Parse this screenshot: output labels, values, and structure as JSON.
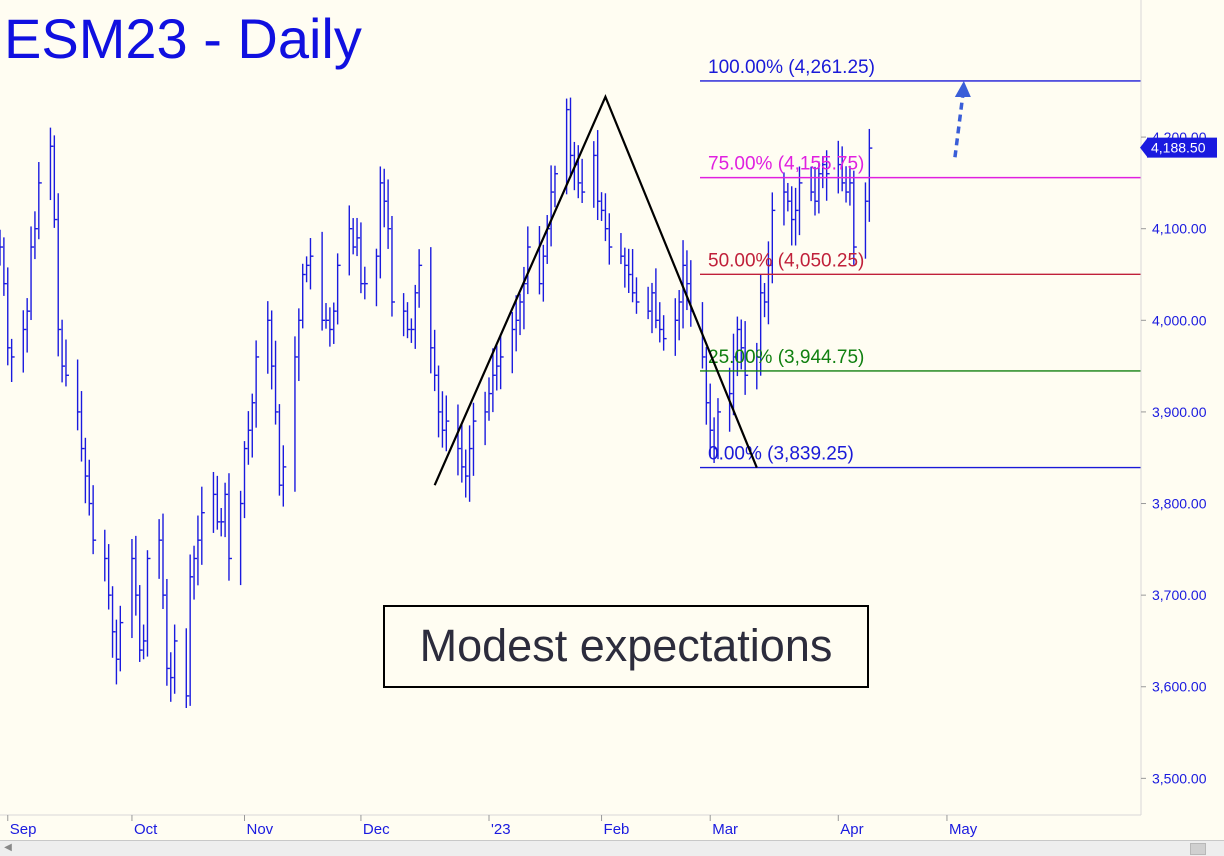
{
  "chart_data": {
    "type": "ohlc-bar",
    "title": "ESM23 - Daily",
    "ylim": [
      3460,
      4330
    ],
    "y_ticks": [
      "3,500.00",
      "3,600.00",
      "3,700.00",
      "3,800.00",
      "3,900.00",
      "4,000.00",
      "4,100.00",
      "4,200.00"
    ],
    "y_tick_values": [
      3500,
      3600,
      3700,
      3800,
      3900,
      4000,
      4100,
      4200
    ],
    "x_ticks": [
      "Sep",
      "Oct",
      "Nov",
      "Dec",
      "'23",
      "Feb",
      "Mar",
      "Apr",
      "May"
    ],
    "x_tick_dates": [
      "2022-09-01",
      "2022-10-03",
      "2022-11-01",
      "2022-12-01",
      "2023-01-03",
      "2023-02-01",
      "2023-03-01",
      "2023-04-03",
      "2023-05-01"
    ],
    "x_range": [
      "2022-08-30",
      "2023-06-20"
    ],
    "last_price": "4,188.50",
    "last_price_value": 4188.5,
    "series_closes": {
      "dates_start": "2022-08-30",
      "closes": [
        4080,
        4040,
        3970,
        3960,
        3990,
        4010,
        4080,
        4100,
        4150,
        4190,
        4110,
        3990,
        3950,
        3940,
        3900,
        3860,
        3830,
        3800,
        3760,
        3740,
        3700,
        3660,
        3630,
        3670,
        3740,
        3700,
        3640,
        3650,
        3740,
        3760,
        3700,
        3620,
        3610,
        3650,
        3590,
        3720,
        3740,
        3760,
        3790,
        3810,
        3780,
        3780,
        3810,
        3740,
        3800,
        3860,
        3880,
        3910,
        3960,
        4000,
        3950,
        3900,
        3820,
        3840,
        3960,
        4000,
        4050,
        4060,
        4070,
        4000,
        4000,
        3990,
        4010,
        4060,
        4100,
        4080,
        4090,
        4040,
        4040,
        4070,
        4150,
        4130,
        4100,
        4020,
        4010,
        3990,
        3990,
        4030,
        4060,
        3970,
        3940,
        3900,
        3880,
        3890,
        3860,
        3840,
        3830,
        3860,
        3890,
        3900,
        3920,
        3940,
        3950,
        3960,
        3990,
        4000,
        4020,
        4040,
        4080,
        4040,
        4070,
        4100,
        4140,
        4160,
        4230,
        4180,
        4170,
        4150,
        4140,
        4180,
        4130,
        4120,
        4100,
        4080,
        4070,
        4060,
        4050,
        4030,
        4020,
        4010,
        4030,
        4000,
        3990,
        3980,
        4000,
        4020,
        4060,
        4040,
        4010,
        3960,
        3910,
        3880,
        3860,
        3900,
        3920,
        3960,
        3990,
        3970,
        3940,
        3960,
        4030,
        4020,
        4060,
        4120,
        4140,
        4130,
        4110,
        4120,
        4150,
        4140,
        4130,
        4160,
        4170,
        4160,
        4170,
        4150,
        4140,
        4150,
        4080,
        4130,
        4188
      ]
    },
    "fib_levels": [
      {
        "label": "100.00% (4,261.25)",
        "value": 4261.25,
        "color": "#1a1ad8"
      },
      {
        "label": "75.00% (4,155.75)",
        "value": 4155.75,
        "color": "#e020e0"
      },
      {
        "label": "50.00% (4,050.25)",
        "value": 4050.25,
        "color": "#c0203a"
      },
      {
        "label": "25.00% (3,944.75)",
        "value": 3944.75,
        "color": "#108010"
      },
      {
        "label": "0.00% (3,839.25)",
        "value": 3839.25,
        "color": "#1a1ad8"
      }
    ],
    "abc_pattern": [
      {
        "date": "2022-12-20",
        "value": 3820
      },
      {
        "date": "2023-02-02",
        "value": 4244
      },
      {
        "date": "2023-03-13",
        "value": 3839.25
      }
    ],
    "projection_arrow": {
      "from": {
        "date": "2023-05-01",
        "value": 4178
      },
      "to": {
        "date": "2023-05-02",
        "value": 4261.25
      }
    },
    "annotation": "Modest expectations",
    "colors": {
      "bars": "#1a1adf",
      "pattern": "#000000",
      "title": "#1010e0",
      "price_box": "#1a1adf"
    }
  }
}
